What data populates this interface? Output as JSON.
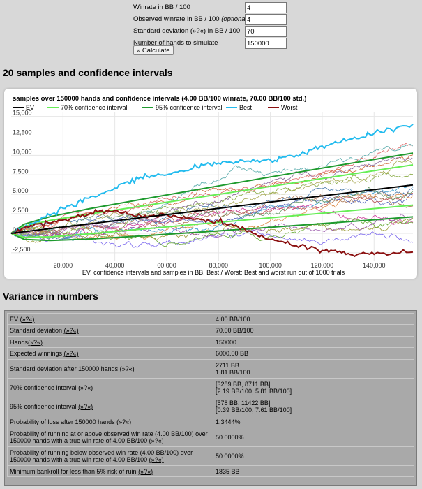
{
  "form": {
    "rows": [
      {
        "label": "Winrate in BB / 100",
        "value": "4"
      },
      {
        "label": "Observed winrate in BB / 100 ",
        "label_em": "(optional)",
        "value": "4"
      },
      {
        "label": "Standard deviation ",
        "link": "(»?«)",
        "label_tail": " in BB / 100",
        "value": "70"
      },
      {
        "label": "Number of hands to simulate",
        "value": "150000"
      }
    ],
    "calculate_label": "» Calculate"
  },
  "section1_title": "20 samples and confidence intervals",
  "section2_title": "Variance in numbers",
  "chart_data": {
    "type": "line",
    "title": "samples over 150000 hands and confidence intervals (4.00 BB/100 winrate, 70.00 BB/100 std.)",
    "xlabel": "EV, confidence intervals and samples in BB, Best / Worst: Best and worst run out of 1000 trials",
    "legend_position": "top",
    "xlim": [
      0,
      155000
    ],
    "ylim": [
      -3500,
      15500
    ],
    "x_ticks": [
      20000,
      40000,
      60000,
      80000,
      100000,
      120000,
      140000
    ],
    "x_tick_labels": [
      "20,000",
      "40,000",
      "60,000",
      "80,000",
      "100,000",
      "120,000",
      "140,000"
    ],
    "y_ticks": [
      -2500,
      0,
      2500,
      5000,
      7500,
      10000,
      12500,
      15000
    ],
    "y_tick_labels": [
      "-2,500",
      "0",
      "2,500",
      "5,000",
      "7,500",
      "10,000",
      "12,500",
      "15,000"
    ],
    "series": [
      {
        "name": "EV",
        "color": "#000000",
        "x": [
          0,
          155000
        ],
        "y": [
          0,
          6200
        ]
      },
      {
        "name": "70% confidence interval",
        "color": "#66ee55",
        "x": [
          0,
          5000,
          15000,
          30000,
          50000,
          75000,
          100000,
          125000,
          155000
        ],
        "y_upper": [
          0,
          903,
          1657,
          2472,
          3475,
          4742,
          6013,
          7283,
          8781
        ],
        "y_lower": [
          0,
          -503,
          -457,
          -72,
          525,
          1258,
          1987,
          2717,
          3619
        ]
      },
      {
        "name": "95% confidence interval",
        "color": "#1e9a2e",
        "x": [
          0,
          5000,
          15000,
          30000,
          50000,
          75000,
          100000,
          125000,
          155000
        ],
        "y_upper": [
          0,
          1172,
          2131,
          3139,
          4336,
          5798,
          7232,
          8644,
          10291
        ],
        "y_lower": [
          0,
          -772,
          -931,
          -739,
          -336,
          202,
          768,
          1356,
          2109
        ]
      },
      {
        "name": "Best",
        "color": "#22bbee",
        "x": [
          0,
          10000,
          20000,
          30000,
          40000,
          50000,
          60000,
          70000,
          80000,
          90000,
          100000,
          110000,
          120000,
          130000,
          140000,
          155000
        ],
        "y": [
          0,
          1500,
          3200,
          4500,
          5800,
          7200,
          7500,
          8300,
          9000,
          9200,
          9400,
          10000,
          11200,
          12000,
          12800,
          14000
        ]
      },
      {
        "name": "Worst",
        "color": "#8b1010",
        "x": [
          0,
          10000,
          20000,
          30000,
          40000,
          50000,
          60000,
          70000,
          80000,
          90000,
          100000,
          110000,
          120000,
          130000,
          140000,
          155000
        ],
        "y": [
          0,
          1200,
          1700,
          2500,
          2900,
          2200,
          2400,
          1800,
          1500,
          600,
          -800,
          -1600,
          -2200,
          -2600,
          -2700,
          -2400
        ]
      }
    ]
  },
  "variance_table": [
    {
      "label": "EV ",
      "link": "(»?«)",
      "value": "4.00 BB/100"
    },
    {
      "label": "Standard deviation ",
      "link": "(»?«)",
      "value": "70.00 BB/100"
    },
    {
      "label": "Hands",
      "link": "(»?«)",
      "value": "150000"
    },
    {
      "label": "Expected winnings ",
      "link": "(»?«)",
      "value": "6000.00 BB"
    },
    {
      "label": "Standard deviation after 150000 hands ",
      "link": "(»?«)",
      "value": "2711 BB",
      "value2": "1.81 BB/100"
    },
    {
      "label": "70% confidence interval ",
      "link": "(»?«)",
      "value": "[3289 BB, 8711 BB]",
      "value2": "[2.19 BB/100, 5.81 BB/100]"
    },
    {
      "label": "95% confidence interval ",
      "link": "(»?«)",
      "value": "[578 BB, 11422 BB]",
      "value2": "[0.39 BB/100, 7.61 BB/100]"
    },
    {
      "label": "Probability of loss after 150000 hands ",
      "link": "(»?«)",
      "value": "1.3444%"
    },
    {
      "label": "Probability of running at or above observed win rate (4.00 BB/100) over 150000 hands with a true win rate of 4.00 BB/100 ",
      "link": "(»?«)",
      "value": "50.0000%"
    },
    {
      "label": "Probability of running below observed win rate (4.00 BB/100) over 150000 hands with a true win rate of 4.00 BB/100 ",
      "link": "(»?«)",
      "value": "50.0000%"
    },
    {
      "label": "Minimum bankroll for less than 5% risk of ruin ",
      "link": "(»?«)",
      "value": "1835 BB"
    }
  ]
}
